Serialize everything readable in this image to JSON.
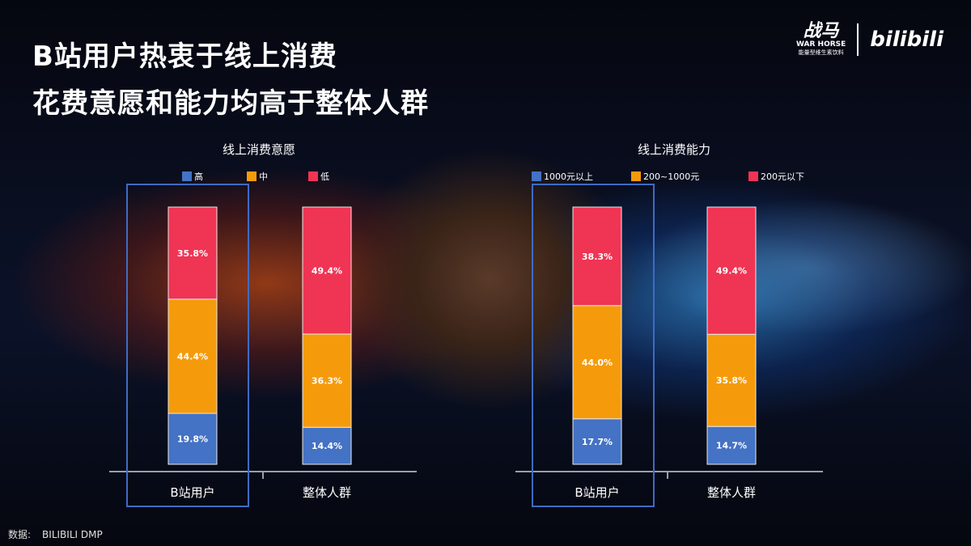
{
  "title_line1": "B站用户热衷于线上消费",
  "title_line2": "花费意愿和能力均高于整体人群",
  "logo": {
    "warhorse_mark": "战马",
    "warhorse_text": "WAR HORSE",
    "warhorse_sub": "能量型维生素饮料",
    "bilibili": "bilibili"
  },
  "source": {
    "label": "数据:",
    "value": "BILIBILI DMP"
  },
  "colors": {
    "high": "#4472c4",
    "mid": "#f59b0b",
    "low": "#f03454",
    "highlight_box": "#3f6bc4",
    "axis": "#9aa0aa"
  },
  "chart_data": [
    {
      "type": "bar",
      "stacked": true,
      "title": "线上消费意愿",
      "categories": [
        "B站用户",
        "整体人群"
      ],
      "series": [
        {
          "name": "高",
          "values": [
            19.8,
            14.4
          ],
          "labels": [
            "19.8%",
            "14.4%"
          ]
        },
        {
          "name": "中",
          "values": [
            44.4,
            36.3
          ],
          "labels": [
            "44.4%",
            "36.3%"
          ]
        },
        {
          "name": "低",
          "values": [
            35.8,
            49.4
          ],
          "labels": [
            "35.8%",
            "49.4%"
          ]
        }
      ],
      "legend_position": "top",
      "highlight_category": "B站用户"
    },
    {
      "type": "bar",
      "stacked": true,
      "title": "线上消费能力",
      "categories": [
        "B站用户",
        "整体人群"
      ],
      "series": [
        {
          "name": "1000元以上",
          "values": [
            17.7,
            14.7
          ],
          "labels": [
            "17.7%",
            "14.7%"
          ]
        },
        {
          "name": "200~1000元",
          "values": [
            44.0,
            35.8
          ],
          "labels": [
            "44.0%",
            "35.8%"
          ]
        },
        {
          "name": "200元以下",
          "values": [
            38.3,
            49.4
          ],
          "labels": [
            "38.3%",
            "49.4%"
          ]
        }
      ],
      "legend_position": "top",
      "highlight_category": "B站用户"
    }
  ]
}
